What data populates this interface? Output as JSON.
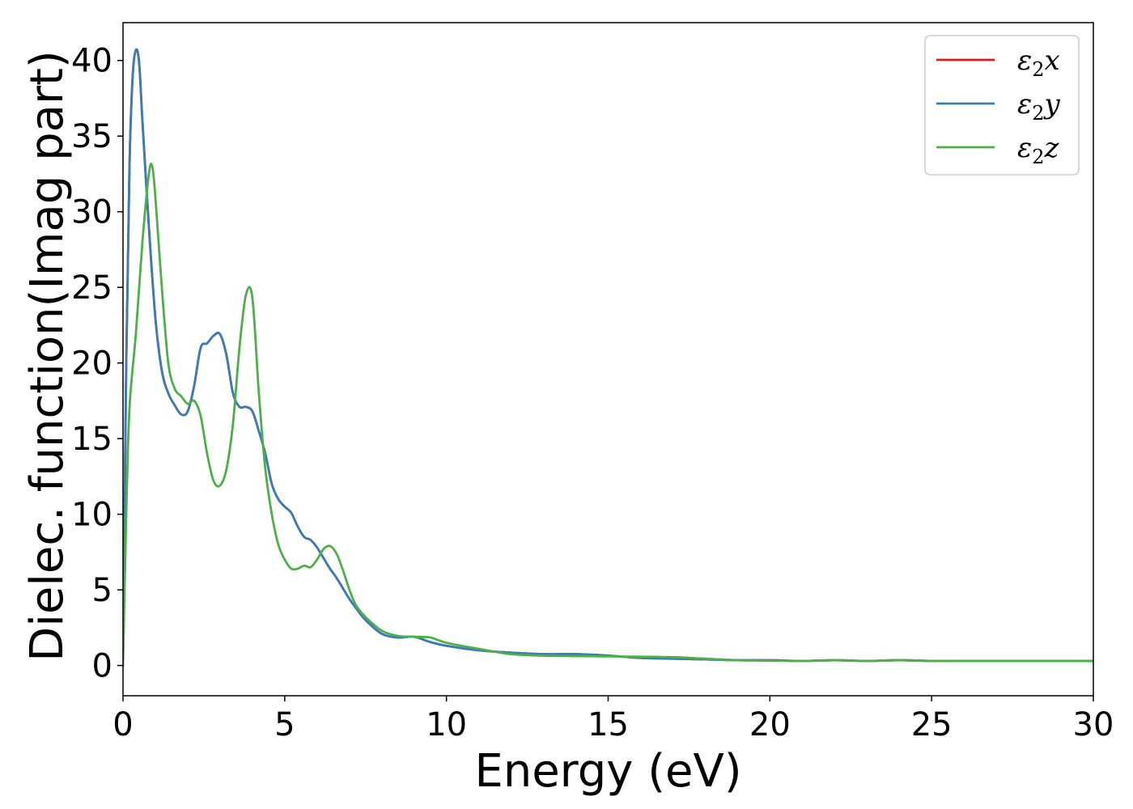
{
  "chart_data": {
    "type": "line",
    "title": "",
    "xlabel": "Energy (eV)",
    "ylabel": "Dielec. function(Imag part)",
    "xlim": [
      0,
      30
    ],
    "ylim": [
      -2,
      42.5
    ],
    "xticks": [
      0,
      5,
      10,
      15,
      20,
      25,
      30
    ],
    "yticks": [
      0,
      5,
      10,
      15,
      20,
      25,
      30,
      35,
      40
    ],
    "grid": false,
    "legend_position": "top-right",
    "series": [
      {
        "name": "ε2x",
        "legend_base": "ε",
        "legend_sub": "2",
        "legend_var": "x",
        "color": "#e41a1c",
        "x": [
          0,
          0.1,
          0.2,
          0.3,
          0.4,
          0.5,
          0.6,
          0.8,
          1.0,
          1.2,
          1.4,
          1.6,
          1.8,
          2.0,
          2.2,
          2.4,
          2.6,
          2.8,
          3.0,
          3.2,
          3.4,
          3.6,
          3.8,
          4.0,
          4.2,
          4.4,
          4.6,
          4.8,
          5.0,
          5.2,
          5.4,
          5.6,
          5.8,
          6.0,
          6.2,
          6.4,
          6.6,
          6.8,
          7.0,
          7.2,
          7.5,
          8.0,
          8.5,
          9.0,
          9.5,
          10.0,
          11.0,
          12.0,
          13.0,
          14.0,
          15.0,
          16.0,
          17.0,
          18.0,
          19.0,
          20.0,
          21.0,
          22.0,
          23.0,
          24.0,
          25.0,
          26.0,
          27.0,
          28.0,
          29.0,
          30.0
        ],
        "y": [
          0,
          20,
          33,
          39,
          40.7,
          39.8,
          36,
          29,
          23,
          19.5,
          18,
          17.2,
          16.6,
          16.8,
          18.5,
          21,
          21.3,
          21.8,
          21.9,
          20.5,
          18,
          17.1,
          17.1,
          16.8,
          15.5,
          14,
          12,
          11,
          10.5,
          10.1,
          9.2,
          8.5,
          8.3,
          7.8,
          7.1,
          6.4,
          5.8,
          5.1,
          4.4,
          3.8,
          3,
          2.1,
          1.85,
          1.9,
          1.55,
          1.3,
          1.0,
          0.85,
          0.75,
          0.75,
          0.65,
          0.5,
          0.45,
          0.4,
          0.35,
          0.35,
          0.3,
          0.35,
          0.3,
          0.35,
          0.3,
          0.3,
          0.3,
          0.3,
          0.3,
          0.3
        ]
      },
      {
        "name": "ε2y",
        "legend_base": "ε",
        "legend_sub": "2",
        "legend_var": "y",
        "color": "#377eb8",
        "x": [
          0,
          0.1,
          0.2,
          0.3,
          0.4,
          0.5,
          0.6,
          0.8,
          1.0,
          1.2,
          1.4,
          1.6,
          1.8,
          2.0,
          2.2,
          2.4,
          2.6,
          2.8,
          3.0,
          3.2,
          3.4,
          3.6,
          3.8,
          4.0,
          4.2,
          4.4,
          4.6,
          4.8,
          5.0,
          5.2,
          5.4,
          5.6,
          5.8,
          6.0,
          6.2,
          6.4,
          6.6,
          6.8,
          7.0,
          7.2,
          7.5,
          8.0,
          8.5,
          9.0,
          9.5,
          10.0,
          11.0,
          12.0,
          13.0,
          14.0,
          15.0,
          16.0,
          17.0,
          18.0,
          19.0,
          20.0,
          21.0,
          22.0,
          23.0,
          24.0,
          25.0,
          26.0,
          27.0,
          28.0,
          29.0,
          30.0
        ],
        "y": [
          0,
          20,
          33,
          39,
          40.7,
          39.8,
          36,
          29,
          23,
          19.5,
          18,
          17.2,
          16.6,
          16.8,
          18.5,
          21,
          21.3,
          21.8,
          21.9,
          20.5,
          18,
          17.1,
          17.1,
          16.8,
          15.5,
          14,
          12,
          11,
          10.5,
          10.1,
          9.2,
          8.5,
          8.3,
          7.8,
          7.1,
          6.4,
          5.8,
          5.1,
          4.4,
          3.8,
          3,
          2.1,
          1.85,
          1.9,
          1.55,
          1.3,
          1.0,
          0.85,
          0.75,
          0.75,
          0.65,
          0.5,
          0.45,
          0.4,
          0.35,
          0.35,
          0.3,
          0.35,
          0.3,
          0.35,
          0.3,
          0.3,
          0.3,
          0.3,
          0.3,
          0.3
        ]
      },
      {
        "name": "ε2z",
        "legend_base": "ε",
        "legend_sub": "2",
        "legend_var": "z",
        "color": "#4daf4a",
        "x": [
          0,
          0.1,
          0.2,
          0.4,
          0.6,
          0.8,
          0.9,
          1.0,
          1.2,
          1.4,
          1.6,
          1.8,
          2.0,
          2.2,
          2.4,
          2.6,
          2.8,
          3.0,
          3.2,
          3.4,
          3.6,
          3.8,
          4.0,
          4.2,
          4.4,
          4.6,
          4.8,
          5.0,
          5.2,
          5.4,
          5.6,
          5.8,
          6.0,
          6.2,
          6.4,
          6.6,
          6.8,
          7.0,
          7.2,
          7.5,
          8.0,
          8.5,
          9.0,
          9.5,
          10.0,
          11.0,
          12.0,
          13.0,
          14.0,
          15.0,
          16.0,
          17.0,
          18.0,
          19.0,
          20.0,
          21.0,
          22.0,
          23.0,
          24.0,
          25.0,
          26.0,
          27.0,
          28.0,
          29.0,
          30.0
        ],
        "y": [
          0,
          10,
          17,
          22,
          28,
          32.5,
          33,
          31,
          25,
          20,
          18.3,
          17.8,
          17.3,
          17.5,
          16.5,
          14,
          12.2,
          11.9,
          13,
          16,
          21,
          24.5,
          24.3,
          18,
          13,
          10,
          8,
          7,
          6.4,
          6.4,
          6.6,
          6.5,
          7,
          7.7,
          7.9,
          7.4,
          6.3,
          5,
          4,
          3.2,
          2.3,
          1.95,
          1.9,
          1.85,
          1.5,
          1.1,
          0.75,
          0.65,
          0.62,
          0.6,
          0.58,
          0.55,
          0.45,
          0.35,
          0.32,
          0.3,
          0.35,
          0.3,
          0.35,
          0.3,
          0.3,
          0.3,
          0.3,
          0.3,
          0.3
        ]
      }
    ]
  }
}
